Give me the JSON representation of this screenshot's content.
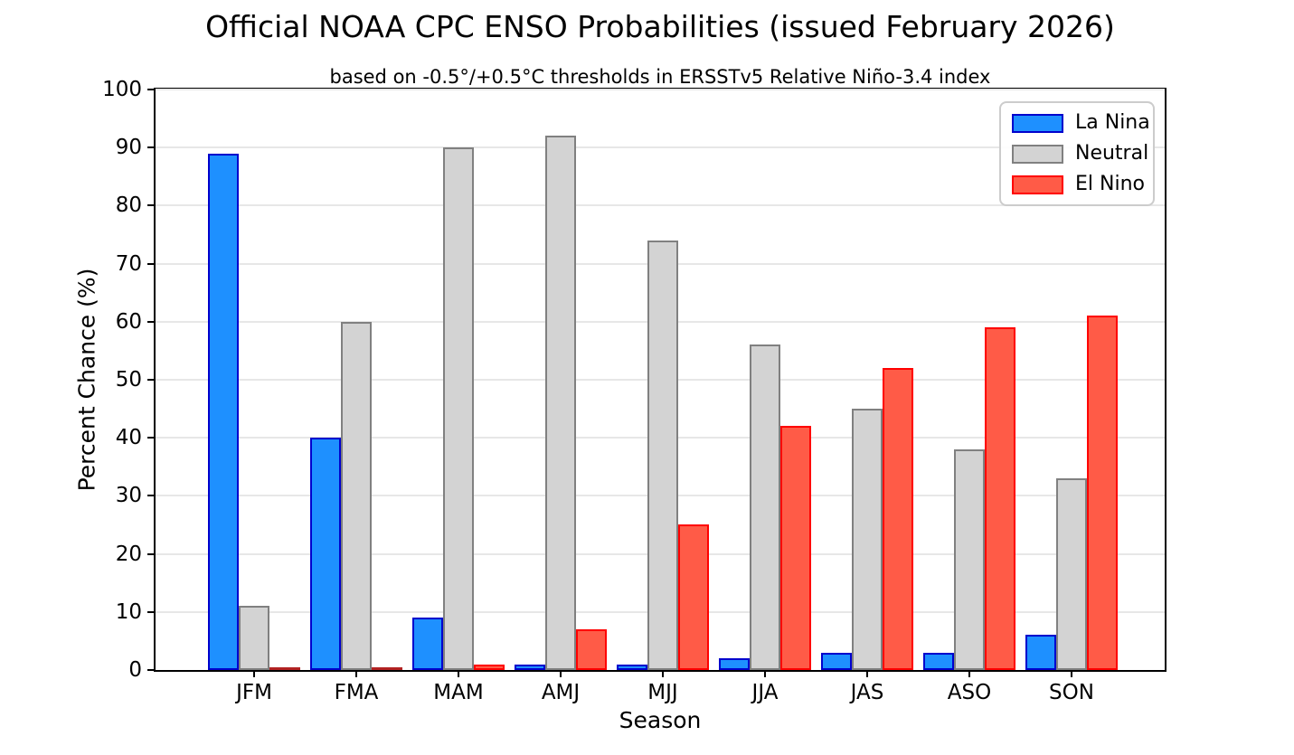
{
  "chart_data": {
    "type": "bar",
    "title": "Official NOAA CPC ENSO Probabilities (issued February 2026)",
    "subtitle": "based on -0.5°/+0.5°C thresholds in ERSSTv5 Relative Niño-3.4 index",
    "xlabel": "Season",
    "ylabel": "Percent Chance (%)",
    "categories": [
      "JFM",
      "FMA",
      "MAM",
      "AMJ",
      "MJJ",
      "JJA",
      "JAS",
      "ASO",
      "SON"
    ],
    "series": [
      {
        "name": "La Nina",
        "values": [
          89,
          40,
          9,
          1,
          1,
          2,
          3,
          3,
          6
        ],
        "fill": "#1E90FF",
        "edge": "#0000CD"
      },
      {
        "name": "Neutral",
        "values": [
          11,
          60,
          90,
          92,
          74,
          56,
          45,
          38,
          33
        ],
        "fill": "#D3D3D3",
        "edge": "#808080"
      },
      {
        "name": "El Nino",
        "values": [
          0,
          0,
          1,
          7,
          25,
          42,
          52,
          59,
          61
        ],
        "fill": "#FF5B47",
        "edge": "#FF0000"
      }
    ],
    "ylim": [
      0,
      100
    ],
    "yticks": [
      0,
      10,
      20,
      30,
      40,
      50,
      60,
      70,
      80,
      90,
      100
    ],
    "grid": "horizontal",
    "gridline_color": "#e7e7e7",
    "legend_position": "top-right",
    "zero_bar_color": "#B22222"
  }
}
